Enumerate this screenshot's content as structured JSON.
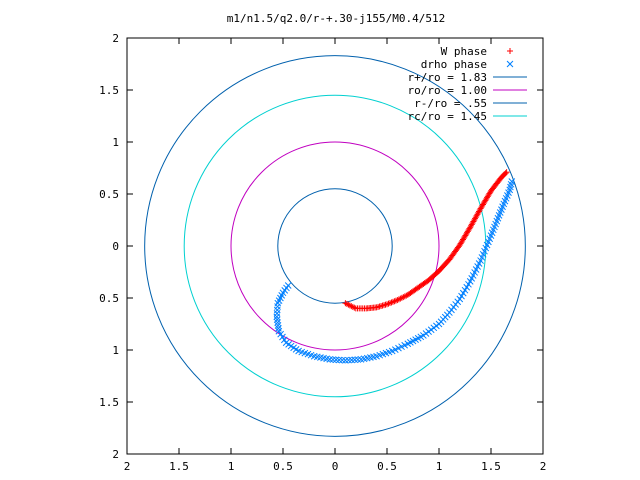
{
  "chart_data": {
    "type": "scatter",
    "title": "m1/n1.5/q2.0/r-+.30-j155/M0.4/512",
    "xlabel": "",
    "ylabel": "",
    "xlim": [
      -2,
      2
    ],
    "ylim": [
      -2,
      2
    ],
    "grid": false,
    "legend_position": "top-right",
    "x_ticks": [
      "2",
      "1.5",
      "1",
      "0.5",
      "0",
      "0.5",
      "1",
      "1.5",
      "2"
    ],
    "y_ticks": [
      "2",
      "1.5",
      "1",
      "0.5",
      "0",
      "0.5",
      "1",
      "1.5",
      "2"
    ],
    "series": [
      {
        "name": "W phase",
        "kind": "points",
        "marker": "+",
        "color": "#ff0000",
        "x": [
          0.1,
          0.2,
          0.3,
          0.4,
          0.5,
          0.6,
          0.7,
          0.8,
          0.9,
          1.0,
          1.1,
          1.2,
          1.3,
          1.4,
          1.5,
          1.6,
          1.65
        ],
        "y": [
          -0.55,
          -0.6,
          -0.6,
          -0.59,
          -0.56,
          -0.52,
          -0.47,
          -0.4,
          -0.33,
          -0.24,
          -0.13,
          0.01,
          0.18,
          0.36,
          0.53,
          0.66,
          0.71
        ]
      },
      {
        "name": "drho phase",
        "kind": "points",
        "marker": "x",
        "color": "#0080ff",
        "x": [
          -0.45,
          -0.5,
          -0.55,
          -0.56,
          -0.54,
          -0.47,
          -0.35,
          -0.2,
          -0.05,
          0.1,
          0.25,
          0.4,
          0.55,
          0.7,
          0.85,
          1.0,
          1.1,
          1.2,
          1.3,
          1.4,
          1.5,
          1.6,
          1.68,
          1.7
        ],
        "y": [
          -0.38,
          -0.45,
          -0.55,
          -0.68,
          -0.82,
          -0.93,
          -1.01,
          -1.06,
          -1.09,
          -1.1,
          -1.09,
          -1.06,
          -1.01,
          -0.94,
          -0.86,
          -0.75,
          -0.64,
          -0.51,
          -0.34,
          -0.14,
          0.1,
          0.35,
          0.54,
          0.62
        ]
      },
      {
        "name": "r+/ro = 1.83",
        "kind": "circle",
        "radius": 1.83,
        "color": "#0060ad"
      },
      {
        "name": "ro/ro = 1.00",
        "kind": "circle",
        "radius": 1.0,
        "color": "#c000c0"
      },
      {
        "name": "r-/ro = .55",
        "kind": "circle",
        "radius": 0.55,
        "color": "#0060ad"
      },
      {
        "name": "rc/ro = 1.45",
        "kind": "circle",
        "radius": 1.45,
        "color": "#00d0d0"
      }
    ]
  }
}
